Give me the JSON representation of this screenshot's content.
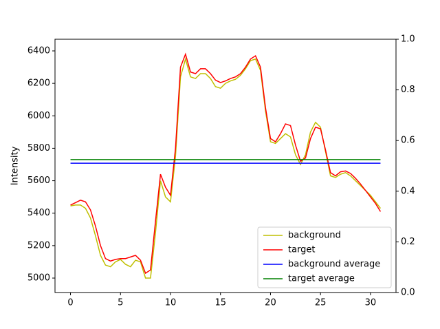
{
  "chart_data": {
    "type": "line",
    "ylabel": "Intensity",
    "x": [
      0,
      0.5,
      1,
      1.5,
      2,
      2.5,
      3,
      3.5,
      4,
      4.5,
      5,
      5.5,
      6,
      6.5,
      7,
      7.5,
      8,
      8.5,
      9,
      9.5,
      10,
      10.5,
      11,
      11.5,
      12,
      12.5,
      13,
      13.5,
      14,
      14.5,
      15,
      15.5,
      16,
      16.5,
      17,
      17.5,
      18,
      18.5,
      19,
      19.5,
      20,
      20.5,
      21,
      21.5,
      22,
      22.5,
      23,
      23.5,
      24,
      24.5,
      25,
      25.5,
      26,
      26.5,
      27,
      27.5,
      28,
      28.5,
      29,
      29.5,
      30,
      30.5,
      31
    ],
    "series": [
      {
        "name": "background",
        "color": "#bfbf00",
        "values": [
          5445,
          5450,
          5450,
          5430,
          5370,
          5260,
          5140,
          5080,
          5070,
          5100,
          5115,
          5085,
          5070,
          5110,
          5100,
          5000,
          5000,
          5280,
          5600,
          5500,
          5470,
          5750,
          6240,
          6350,
          6240,
          6230,
          6260,
          6260,
          6230,
          6180,
          6170,
          6200,
          6215,
          6225,
          6250,
          6290,
          6340,
          6350,
          6280,
          6030,
          5840,
          5830,
          5860,
          5890,
          5870,
          5760,
          5700,
          5760,
          5900,
          5960,
          5930,
          5780,
          5630,
          5620,
          5640,
          5650,
          5630,
          5600,
          5570,
          5540,
          5510,
          5470,
          5430
        ]
      },
      {
        "name": "target",
        "color": "#ff0000",
        "values": [
          5450,
          5465,
          5480,
          5470,
          5420,
          5320,
          5200,
          5120,
          5105,
          5115,
          5120,
          5120,
          5130,
          5140,
          5110,
          5030,
          5050,
          5350,
          5640,
          5560,
          5510,
          5800,
          6300,
          6380,
          6270,
          6260,
          6290,
          6290,
          6260,
          6220,
          6205,
          6215,
          6230,
          6240,
          6260,
          6300,
          6350,
          6370,
          6300,
          6050,
          5860,
          5840,
          5890,
          5950,
          5940,
          5820,
          5720,
          5740,
          5860,
          5930,
          5920,
          5790,
          5650,
          5630,
          5655,
          5660,
          5645,
          5615,
          5580,
          5540,
          5500,
          5460,
          5410
        ]
      },
      {
        "name": "background average",
        "color": "#0000ff",
        "x": [
          0,
          31
        ],
        "values": [
          5708,
          5708
        ]
      },
      {
        "name": "target average",
        "color": "#008000",
        "x": [
          0,
          31
        ],
        "values": [
          5730,
          5730
        ]
      }
    ],
    "xlim": [
      -1.55,
      32.55
    ],
    "xticks": [
      0,
      5,
      10,
      15,
      20,
      25,
      30
    ],
    "ylim": [
      4911,
      6472
    ],
    "yticks": [
      5000,
      5200,
      5400,
      5600,
      5800,
      6000,
      6200,
      6400
    ],
    "y2lim": [
      0,
      1
    ],
    "y2ticks": [
      {
        "value": 0,
        "label": "0.0"
      },
      0.2,
      0.4,
      0.6,
      0.8,
      {
        "value": 1,
        "label": "1.0"
      }
    ],
    "legend": "lower right"
  }
}
